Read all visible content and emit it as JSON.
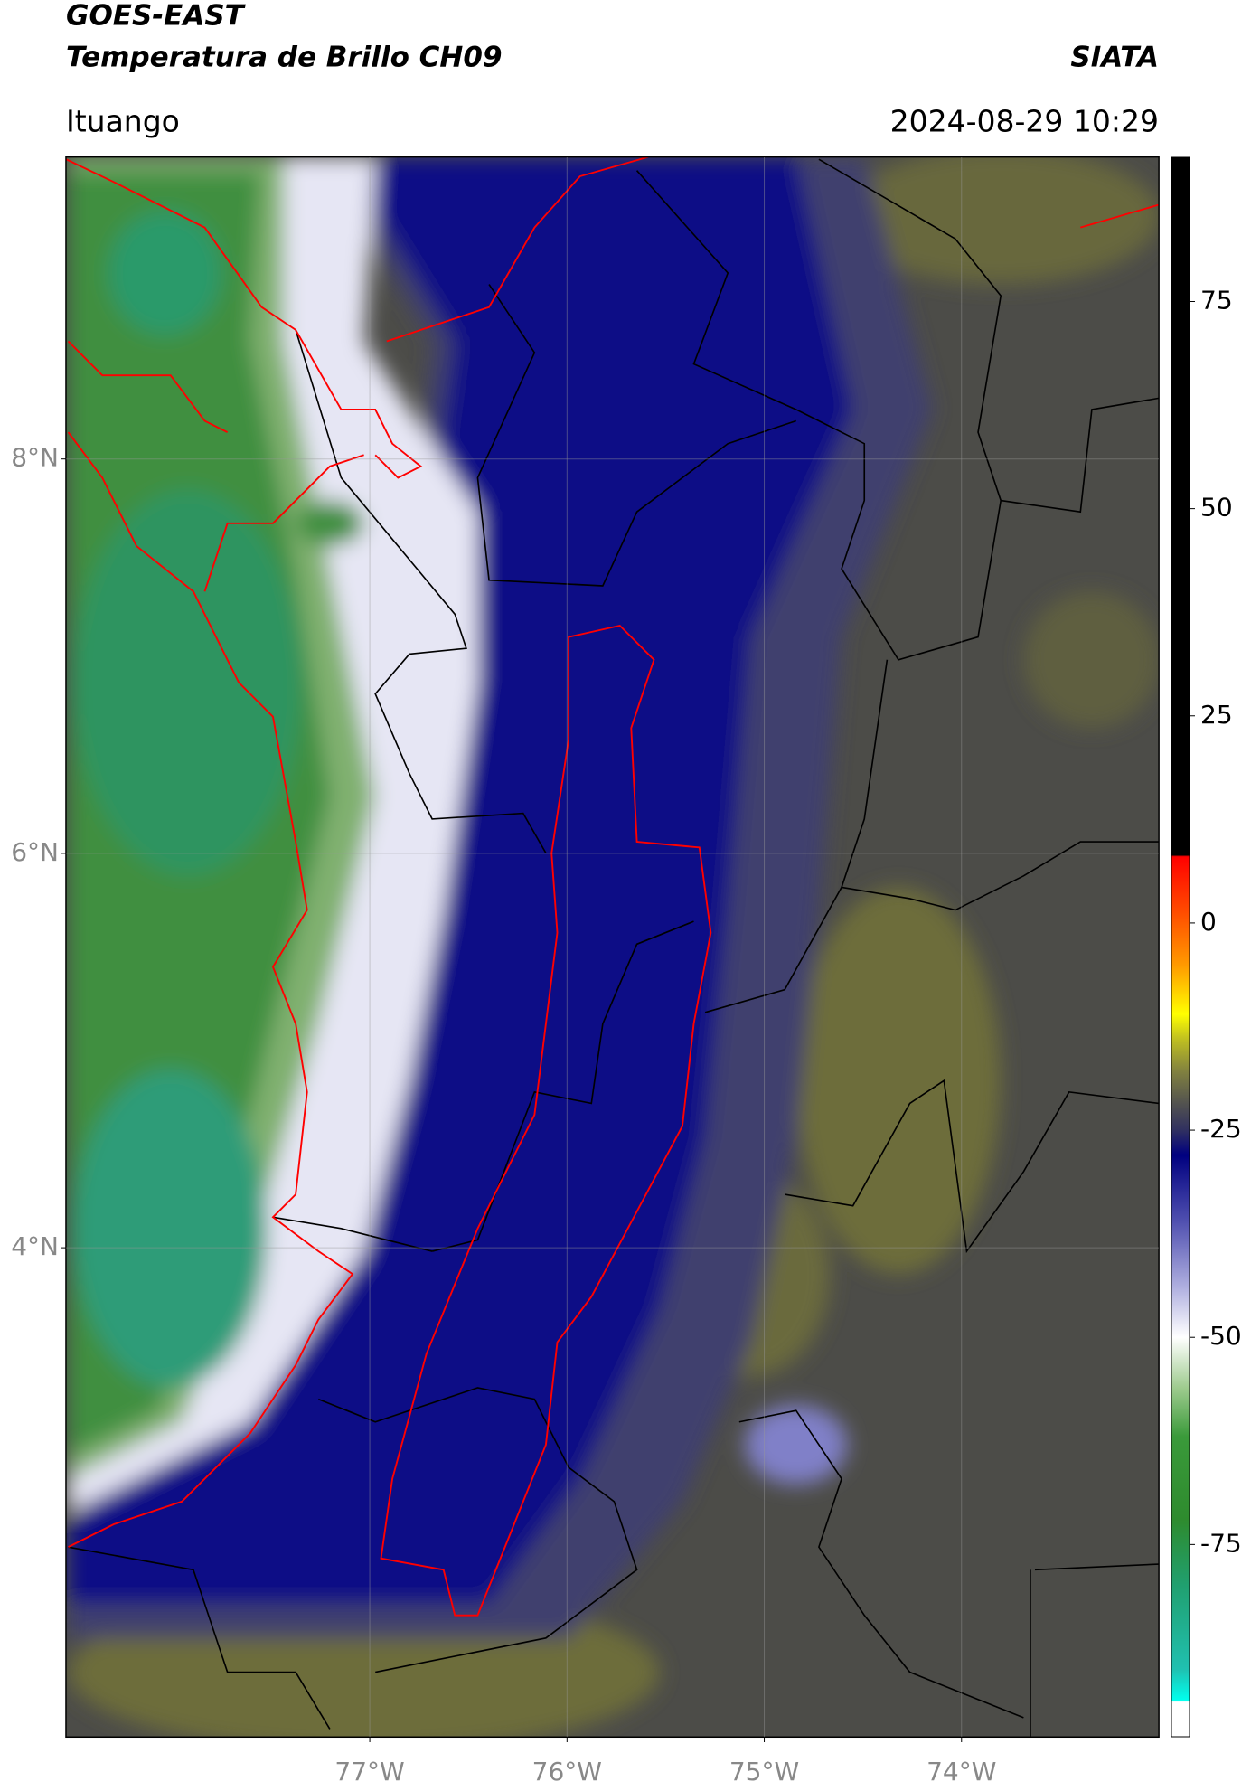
{
  "header": {
    "title": "GOES-EAST",
    "subtitle": "Temperatura de Brillo CH09",
    "source": "SIATA",
    "location": "Ituango",
    "datetime": "2024-08-29 10:29"
  },
  "map": {
    "xlim": [
      -78.54,
      -73.0
    ],
    "ylim": [
      1.52,
      9.53
    ],
    "xticks": [
      {
        "value": -77,
        "label": "77°W"
      },
      {
        "value": -76,
        "label": "76°W"
      },
      {
        "value": -75,
        "label": "75°W"
      },
      {
        "value": -74,
        "label": "74°W"
      }
    ],
    "yticks": [
      {
        "value": 8,
        "label": "8°N"
      },
      {
        "value": 6,
        "label": "6°N"
      },
      {
        "value": 4,
        "label": "4°N"
      }
    ],
    "grid": true
  },
  "colorbar": {
    "lim": [
      -98.2,
      92.4
    ],
    "ticks": [
      75,
      50,
      25,
      0,
      -25,
      -50,
      -75
    ],
    "colorscale": [
      {
        "value": -98.2,
        "color": "#ffffff"
      },
      {
        "value": -94,
        "color": "#ffffff"
      },
      {
        "value": -93.8,
        "color": "#00ffee"
      },
      {
        "value": -90,
        "color": "#20c0b0"
      },
      {
        "value": -80,
        "color": "#20a070"
      },
      {
        "value": -72,
        "color": "#2e8b2e"
      },
      {
        "value": -62,
        "color": "#3a9a3a"
      },
      {
        "value": -56,
        "color": "#a0cc90"
      },
      {
        "value": -50,
        "color": "#ffffff"
      },
      {
        "value": -44,
        "color": "#b0b0e0"
      },
      {
        "value": -36,
        "color": "#5050b0"
      },
      {
        "value": -28,
        "color": "#000080"
      },
      {
        "value": -25,
        "color": "#303060"
      },
      {
        "value": -22,
        "color": "#505050"
      },
      {
        "value": -18,
        "color": "#808040"
      },
      {
        "value": -14,
        "color": "#c0c020"
      },
      {
        "value": -11,
        "color": "#ffff00"
      },
      {
        "value": -5,
        "color": "#ff9900"
      },
      {
        "value": 2,
        "color": "#ff4400"
      },
      {
        "value": 8,
        "color": "#ff0000"
      },
      {
        "value": 8.2,
        "color": "#000000"
      },
      {
        "value": 92.4,
        "color": "#000000"
      }
    ]
  }
}
